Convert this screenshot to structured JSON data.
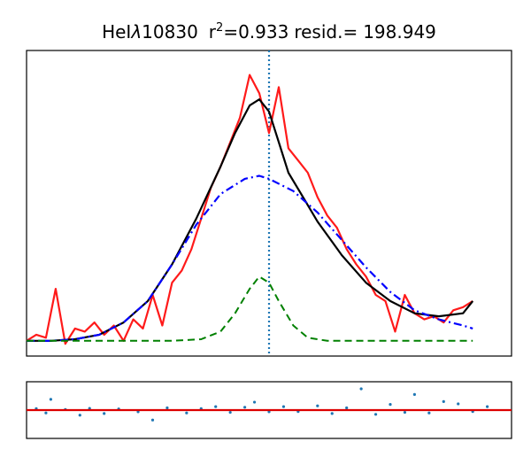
{
  "title": {
    "line": "HeI",
    "lambda": "λ",
    "wavelength": "10830",
    "r_label": "r",
    "r_sup": "2",
    "r_value": "=0.933",
    "resid_label": "resid.=",
    "resid_value": "198.949"
  },
  "chart_data": [
    {
      "type": "line",
      "panel": "main",
      "title": "HeIλ10830  r²=0.933 resid.= 198.949",
      "xlabel": "",
      "ylabel": "",
      "x_ticks": [],
      "y_ticks": [],
      "xlim": [
        0,
        1
      ],
      "ylim": [
        0,
        1
      ],
      "grid": false,
      "series": [
        {
          "role": "observed spectrum",
          "color": "#ff1a1a",
          "style": "solid",
          "x": [
            0.0,
            0.02,
            0.04,
            0.06,
            0.08,
            0.1,
            0.12,
            0.14,
            0.16,
            0.18,
            0.2,
            0.22,
            0.24,
            0.26,
            0.28,
            0.3,
            0.32,
            0.34,
            0.36,
            0.38,
            0.4,
            0.42,
            0.44,
            0.46,
            0.48,
            0.5,
            0.52,
            0.54,
            0.56,
            0.58,
            0.6,
            0.62,
            0.64,
            0.66,
            0.68,
            0.7,
            0.72,
            0.74,
            0.76,
            0.78,
            0.8,
            0.82,
            0.84,
            0.86,
            0.88,
            0.9,
            0.92
          ],
          "y": [
            0.05,
            0.07,
            0.06,
            0.22,
            0.04,
            0.09,
            0.08,
            0.11,
            0.07,
            0.1,
            0.05,
            0.12,
            0.09,
            0.2,
            0.1,
            0.24,
            0.28,
            0.35,
            0.45,
            0.55,
            0.62,
            0.7,
            0.78,
            0.92,
            0.86,
            0.73,
            0.88,
            0.68,
            0.64,
            0.6,
            0.52,
            0.46,
            0.42,
            0.35,
            0.3,
            0.26,
            0.2,
            0.18,
            0.08,
            0.2,
            0.14,
            0.12,
            0.13,
            0.11,
            0.15,
            0.16,
            0.18
          ]
        },
        {
          "role": "total fit",
          "color": "#000000",
          "style": "solid",
          "x": [
            0.0,
            0.05,
            0.1,
            0.15,
            0.2,
            0.25,
            0.3,
            0.35,
            0.4,
            0.43,
            0.46,
            0.48,
            0.5,
            0.52,
            0.54,
            0.57,
            0.6,
            0.65,
            0.7,
            0.75,
            0.8,
            0.85,
            0.9,
            0.92
          ],
          "y": [
            0.05,
            0.05,
            0.055,
            0.07,
            0.11,
            0.18,
            0.3,
            0.45,
            0.62,
            0.73,
            0.82,
            0.84,
            0.8,
            0.7,
            0.6,
            0.52,
            0.44,
            0.33,
            0.24,
            0.18,
            0.14,
            0.13,
            0.14,
            0.18
          ]
        },
        {
          "role": "broad component",
          "color": "#0000ff",
          "style": "dashdot",
          "x": [
            0.0,
            0.05,
            0.1,
            0.15,
            0.2,
            0.25,
            0.3,
            0.35,
            0.4,
            0.45,
            0.48,
            0.5,
            0.55,
            0.6,
            0.65,
            0.7,
            0.75,
            0.8,
            0.85,
            0.9,
            0.92
          ],
          "y": [
            0.05,
            0.05,
            0.055,
            0.07,
            0.11,
            0.18,
            0.3,
            0.43,
            0.53,
            0.58,
            0.59,
            0.58,
            0.54,
            0.47,
            0.38,
            0.29,
            0.21,
            0.15,
            0.12,
            0.1,
            0.09
          ]
        },
        {
          "role": "narrow component",
          "color": "#008000",
          "style": "dashed",
          "x": [
            0.0,
            0.1,
            0.2,
            0.3,
            0.36,
            0.4,
            0.43,
            0.46,
            0.48,
            0.5,
            0.52,
            0.55,
            0.58,
            0.62,
            0.7,
            0.8,
            0.92
          ],
          "y": [
            0.05,
            0.05,
            0.05,
            0.05,
            0.055,
            0.08,
            0.14,
            0.22,
            0.26,
            0.24,
            0.18,
            0.1,
            0.06,
            0.05,
            0.05,
            0.05,
            0.05
          ]
        }
      ],
      "vline": {
        "x": 0.5,
        "color": "#1f77b4",
        "style": "dotted"
      }
    },
    {
      "type": "scatter",
      "panel": "residuals",
      "xlabel": "",
      "ylabel": "",
      "xlim": [
        0,
        1
      ],
      "ylim": [
        -1,
        1
      ],
      "grid": false,
      "points_color": "#1f77b4",
      "zero_line": {
        "y": 0,
        "color": "#dd0000"
      },
      "series": [
        {
          "x": [
            0.02,
            0.04,
            0.05,
            0.08,
            0.11,
            0.13,
            0.16,
            0.19,
            0.23,
            0.26,
            0.29,
            0.33,
            0.36,
            0.39,
            0.42,
            0.45,
            0.47,
            0.5,
            0.53,
            0.56,
            0.6,
            0.63,
            0.66,
            0.69,
            0.72,
            0.75,
            0.78,
            0.8,
            0.83,
            0.86,
            0.89,
            0.92,
            0.95
          ],
          "y": [
            0.05,
            -0.1,
            0.38,
            0.02,
            -0.18,
            0.06,
            -0.12,
            0.04,
            -0.06,
            -0.35,
            0.08,
            -0.1,
            0.05,
            0.12,
            -0.08,
            0.1,
            0.28,
            -0.06,
            0.12,
            -0.05,
            0.15,
            -0.12,
            0.08,
            0.75,
            -0.15,
            0.2,
            -0.08,
            0.55,
            -0.1,
            0.3,
            0.22,
            -0.05,
            0.12
          ]
        }
      ]
    }
  ]
}
